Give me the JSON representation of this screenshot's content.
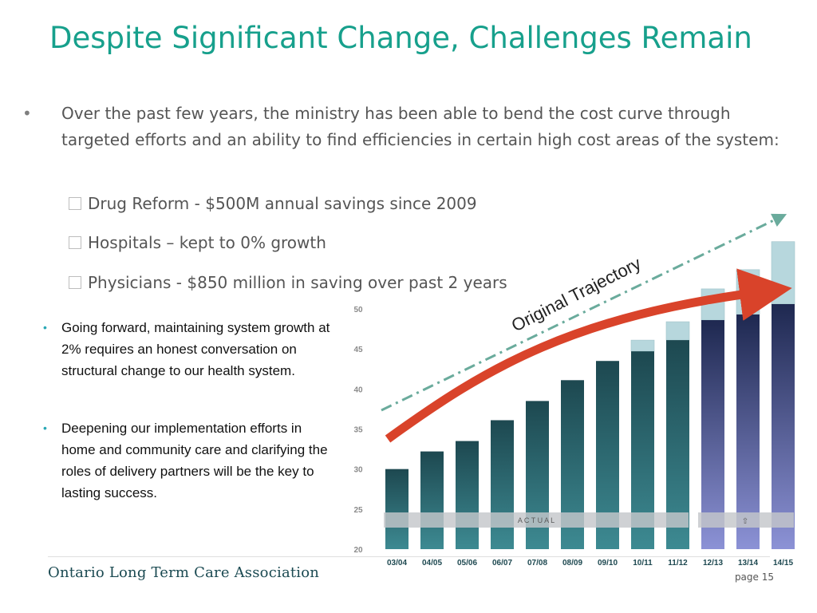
{
  "slide": {
    "title": "Despite Significant Change, Challenges Remain",
    "bullet1": "Over the past few years, the ministry has been able to bend the cost curve through targeted efforts and an ability to find efficiencies in certain high cost areas of the system:",
    "sub_items": [
      "Drug Reform - $500M annual savings since 2009",
      "Hospitals – kept to 0% growth",
      "Physicians - $850 million in saving over past 2 years"
    ],
    "left_bullets": [
      "Going forward,  maintaining system growth at 2% requires an honest conversation on structural change to our health system.",
      "Deepening our implementation efforts in home and community care and clarifying the roles of delivery partners will be the key to lasting success."
    ],
    "footer_org": "Ontario Long Term Care Association",
    "page_label": "page 15"
  },
  "chart_data": {
    "type": "bar",
    "categories": [
      "03/04",
      "04/05",
      "05/06",
      "06/07",
      "07/08",
      "08/09",
      "09/10",
      "10/11",
      "11/12",
      "12/13",
      "13/14",
      "14/15"
    ],
    "values": [
      30.0,
      32.2,
      33.5,
      36.1,
      38.5,
      41.1,
      43.5,
      44.7,
      46.1,
      48.6,
      49.3,
      50.6
    ],
    "original_trajectory_extra": [
      0,
      0,
      0,
      0,
      0,
      0,
      0,
      1.4,
      2.3,
      3.9,
      5.6,
      7.8
    ],
    "kind": [
      "actual",
      "actual",
      "actual",
      "actual",
      "actual",
      "actual",
      "actual",
      "actual",
      "actual",
      "projected",
      "projected",
      "projected"
    ],
    "ylim": [
      20,
      50
    ],
    "yticks": [
      20,
      25,
      30,
      35,
      40,
      45,
      50
    ],
    "actual_label": "A C T U A L",
    "projected_label": "⇧",
    "trajectory_label": "Original Trajectory",
    "colors": {
      "actual_top": "#1d4850",
      "actual_bottom": "#3d8a92",
      "projected_top": "#1e2850",
      "projected_bottom": "#8c92d6",
      "extra": "#b7d7dd",
      "arrow": "#d9432a",
      "dashed": "#6aab9c",
      "band": "#c4c7ca"
    }
  }
}
